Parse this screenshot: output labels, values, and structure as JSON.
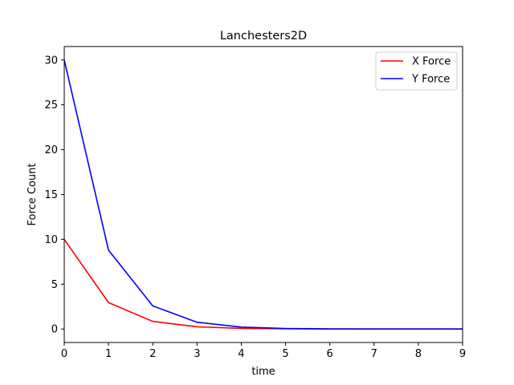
{
  "chart_data": {
    "type": "line",
    "title": "Lanchesters2D",
    "xlabel": "time",
    "ylabel": "Force Count",
    "xlim": [
      0,
      9
    ],
    "ylim": [
      -1.5,
      31.5
    ],
    "xticks": [
      0,
      1,
      2,
      3,
      4,
      5,
      6,
      7,
      8,
      9
    ],
    "yticks": [
      0,
      5,
      10,
      15,
      20,
      25,
      30
    ],
    "grid": false,
    "legend_position": "top-right",
    "x": [
      0,
      1,
      2,
      3,
      4,
      5,
      6,
      7,
      8,
      9
    ],
    "series": [
      {
        "name": "X Force",
        "color": "#ff0000",
        "values": [
          10,
          2.95,
          0.85,
          0.25,
          0.07,
          0.02,
          0.006,
          0.002,
          0.0005,
          0.0001
        ]
      },
      {
        "name": "Y Force",
        "color": "#0000ff",
        "values": [
          30,
          8.8,
          2.58,
          0.76,
          0.22,
          0.065,
          0.019,
          0.006,
          0.002,
          0.0005
        ]
      }
    ]
  }
}
